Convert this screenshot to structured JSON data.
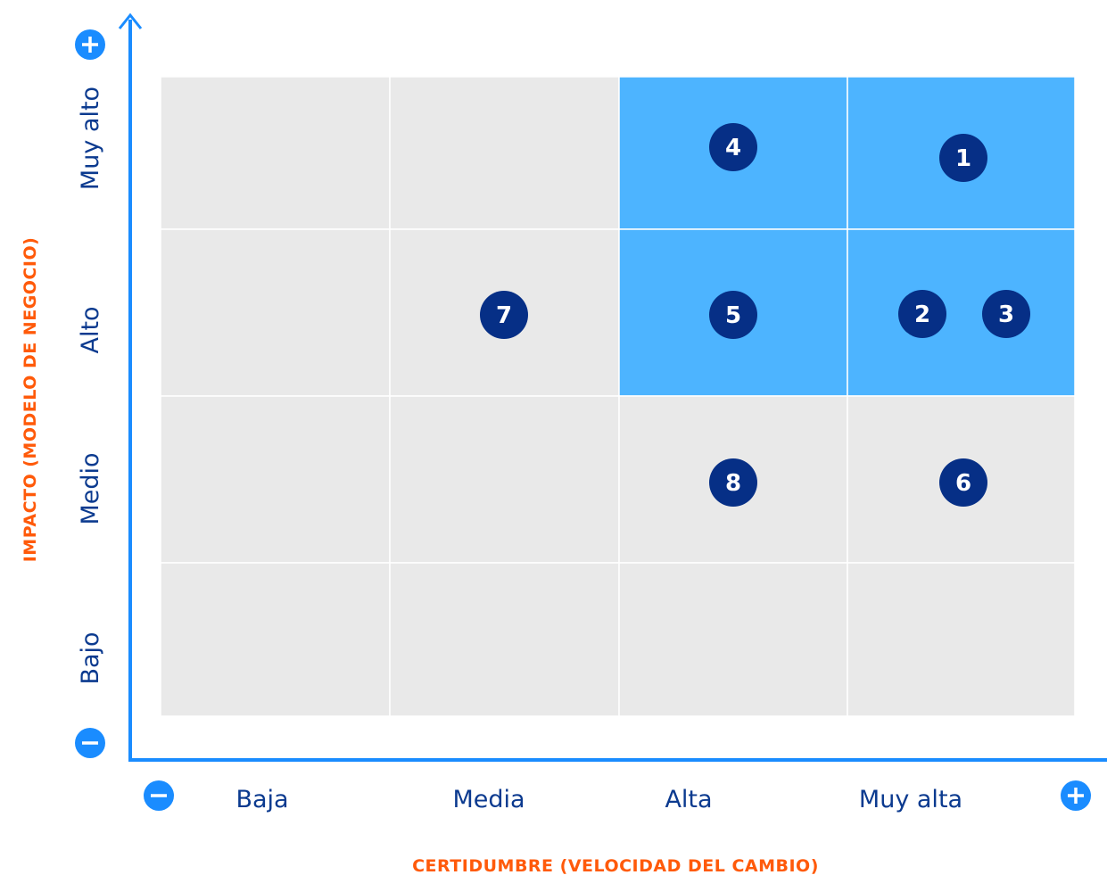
{
  "y_axis_title": "IMPACTO (MODELO DE NEGOCIO)",
  "x_axis_title": "CERTIDUMBRE (VELOCIDAD DEL CAMBIO)",
  "rows": [
    "Muy alto",
    "Alto",
    "Medio",
    "Bajo"
  ],
  "columns": [
    "Baja",
    "Media",
    "Alta",
    "Muy alta"
  ],
  "markers": [
    {
      "label": "1"
    },
    {
      "label": "2"
    },
    {
      "label": "3"
    },
    {
      "label": "4"
    },
    {
      "label": "5"
    },
    {
      "label": "6"
    },
    {
      "label": "7"
    },
    {
      "label": "8"
    }
  ]
}
